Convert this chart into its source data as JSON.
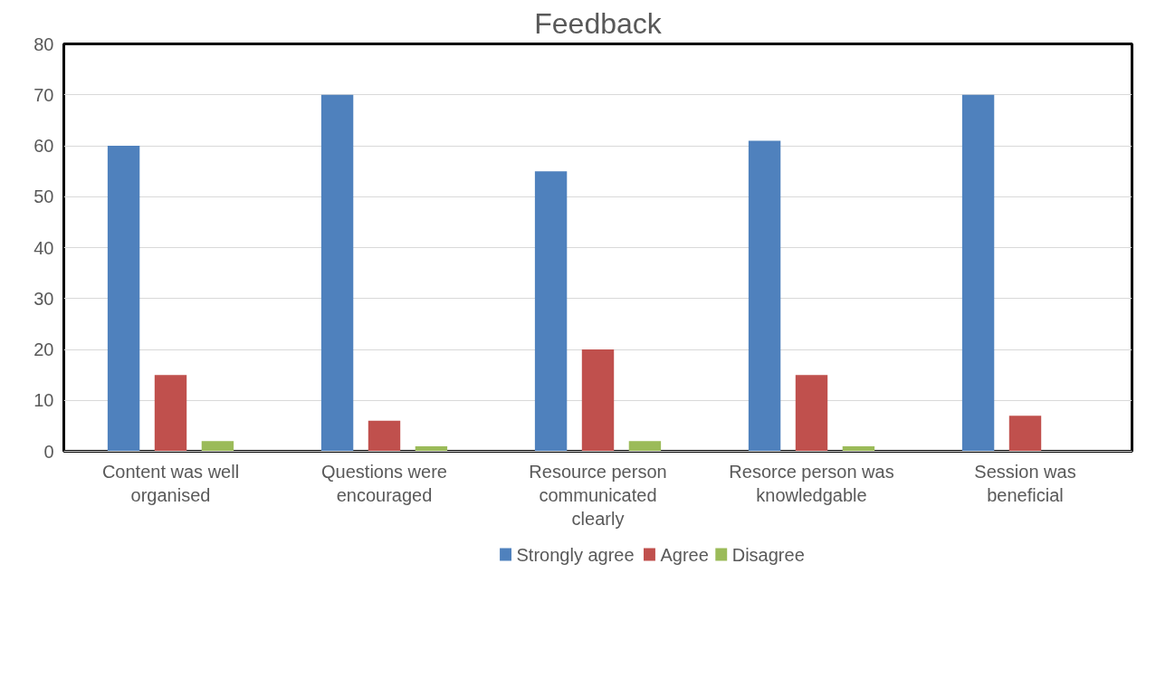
{
  "chart_data": {
    "type": "bar",
    "title": "Feedback",
    "categories": [
      "Content was well organised",
      "Questions were encouraged",
      "Resource person communicated clearly",
      "Resorce person was knowledgable",
      "Session was beneficial"
    ],
    "series": [
      {
        "name": "Strongly agree",
        "color": "#4f81bd",
        "values": [
          60,
          70,
          55,
          61,
          70
        ]
      },
      {
        "name": "Agree",
        "color": "#c0504d",
        "values": [
          15,
          6,
          20,
          15,
          7
        ]
      },
      {
        "name": "Disagree",
        "color": "#9bbb59",
        "values": [
          2,
          1,
          2,
          1,
          0
        ]
      }
    ],
    "ylim": [
      0,
      80
    ],
    "yticks": [
      0,
      10,
      20,
      30,
      40,
      50,
      60,
      70,
      80
    ],
    "grid": "y",
    "legend": "bottom"
  }
}
